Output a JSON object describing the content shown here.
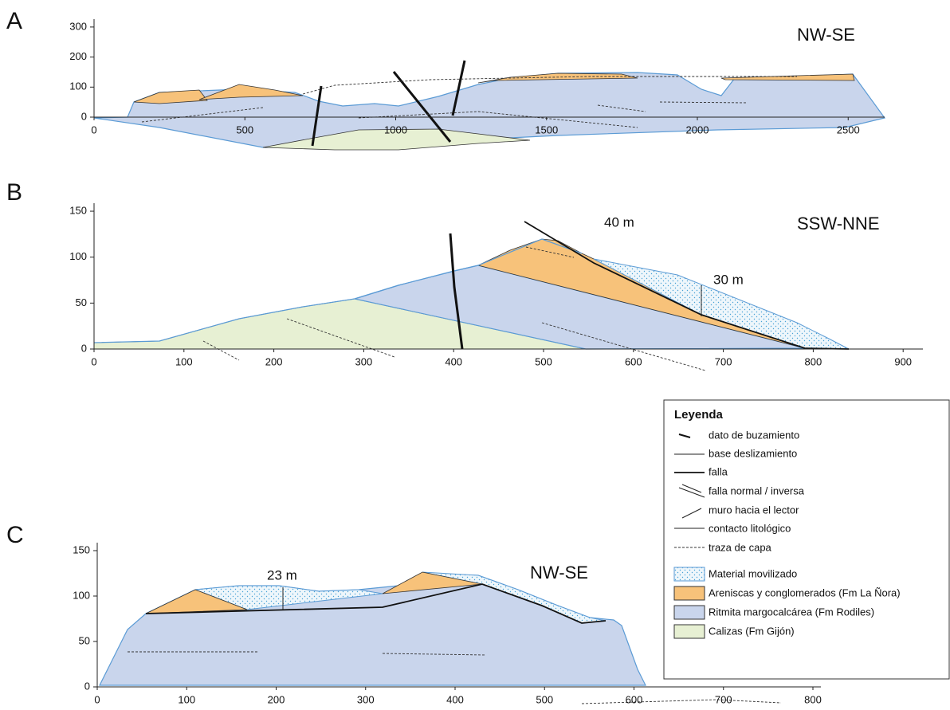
{
  "panels": [
    {
      "label": "A",
      "orientation": "NW-SE",
      "xticks": [
        0,
        500,
        1000,
        1500,
        2000,
        2500
      ],
      "yticks": [
        0,
        100,
        200,
        300
      ],
      "annotations": []
    },
    {
      "label": "B",
      "orientation": "SSW-NNE",
      "xticks": [
        0,
        100,
        200,
        300,
        400,
        500,
        600,
        700,
        800,
        900
      ],
      "yticks": [
        0,
        50,
        100,
        150
      ],
      "annotations": [
        "40 m",
        "30 m"
      ]
    },
    {
      "label": "C",
      "orientation": "NW-SE",
      "xticks": [
        0,
        100,
        200,
        300,
        400,
        500,
        600,
        700,
        800
      ],
      "yticks": [
        0,
        50,
        100,
        150
      ],
      "annotations": [
        "23 m"
      ]
    }
  ],
  "legend": {
    "title": "Leyenda",
    "items": [
      "dato de buzamiento",
      "base deslizamiento",
      "falla",
      "falla normal / inversa",
      "muro hacia el lector",
      "contacto litológico",
      "traza de capa",
      "Material movilizado",
      "Areniscas y conglomerados (Fm La Ñora)",
      "Ritmita margocalcárea (Fm Rodiles)",
      "Calizas (Fm Gijón)"
    ]
  }
}
